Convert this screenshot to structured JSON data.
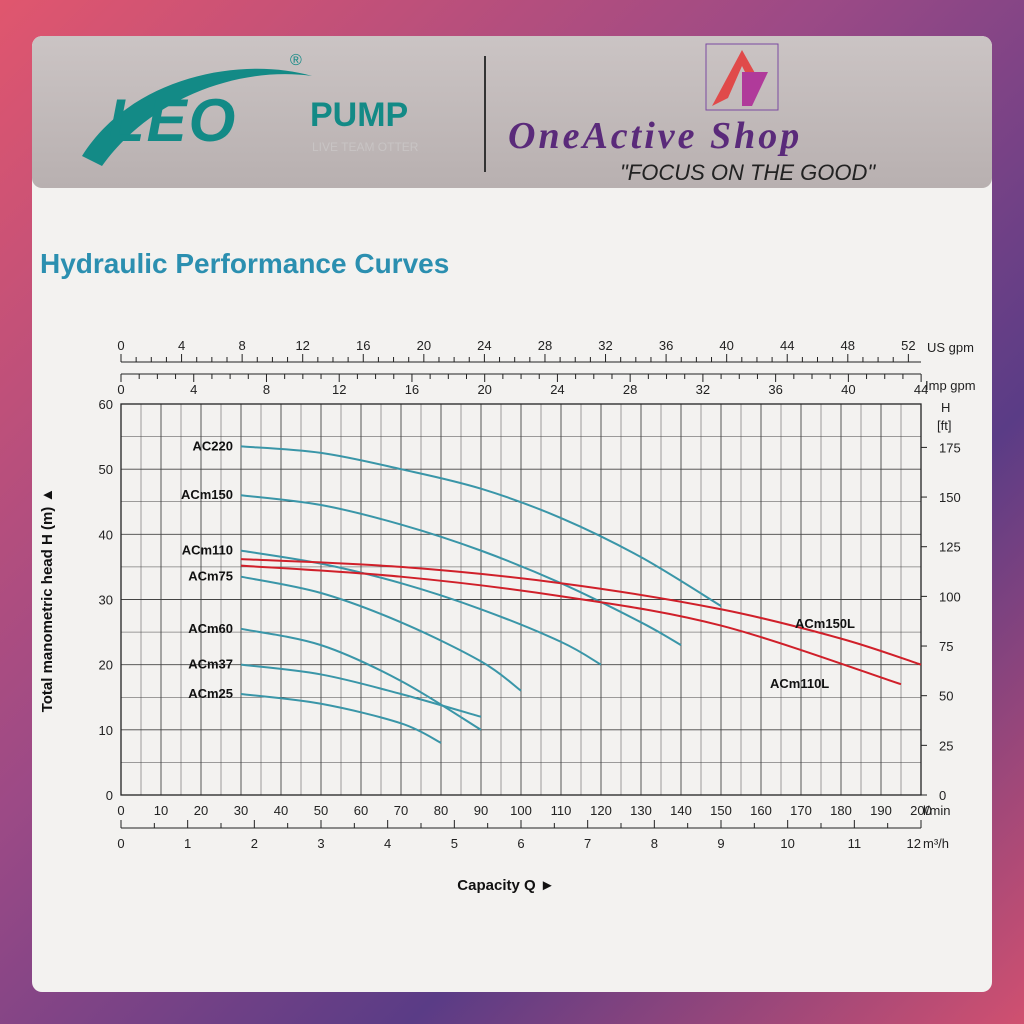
{
  "brand": {
    "leo_logo": "LEO",
    "pump_word": "PUMP",
    "tagline": "LIVE TEAM OTTER",
    "registered_mark": "®",
    "shop_name": "OneActive Shop",
    "shop_tagline": "\"FOCUS ON THE GOOD\""
  },
  "colors": {
    "teal_brand": "#138a86",
    "title_blue": "#2b8fb0",
    "curve_teal": "#3a96a8",
    "curve_red": "#d0202a",
    "grid": "#444444"
  },
  "chart_data": {
    "type": "line",
    "title": "Hydraulic Performance Curves",
    "ylabel": "Total manometric head H (m) ▲",
    "xlabel": "Capacity Q ►",
    "ylim": [
      0,
      60
    ],
    "xlim": [
      0,
      200
    ],
    "x_unit": "l/min",
    "y_ticks": [
      "0",
      "10",
      "20",
      "30",
      "40",
      "50",
      "60"
    ],
    "x_ticks": [
      "0",
      "10",
      "20",
      "30",
      "40",
      "50",
      "60",
      "70",
      "80",
      "90",
      "100",
      "110",
      "120",
      "130",
      "140",
      "150",
      "160",
      "170",
      "180",
      "190",
      "200"
    ],
    "secondary_axes": {
      "us_gpm": {
        "unit": "US gpm",
        "ticks": [
          "0",
          "4",
          "8",
          "12",
          "16",
          "20",
          "24",
          "28",
          "32",
          "36",
          "40",
          "44",
          "48",
          "52"
        ]
      },
      "imp_gpm": {
        "unit": "Imp gpm",
        "ticks": [
          "0",
          "4",
          "8",
          "12",
          "16",
          "20",
          "24",
          "28",
          "32",
          "36",
          "40",
          "44"
        ]
      },
      "m3h": {
        "unit": "m³/h",
        "ticks": [
          "0",
          "1",
          "2",
          "3",
          "4",
          "5",
          "6",
          "7",
          "8",
          "9",
          "10",
          "11",
          "12"
        ]
      },
      "head_ft": {
        "unit": "H",
        "unit2": "[ft]",
        "ticks": [
          "0",
          "25",
          "50",
          "75",
          "100",
          "125",
          "150",
          "175"
        ]
      }
    },
    "grid": true,
    "series": [
      {
        "name": "AC220",
        "color": "teal",
        "label_side": "left",
        "x": [
          30,
          50,
          70,
          90,
          110,
          130,
          150
        ],
        "y": [
          53.5,
          52.5,
          50,
          47,
          42.5,
          36.5,
          29
        ]
      },
      {
        "name": "ACm150",
        "color": "teal",
        "label_side": "left",
        "x": [
          30,
          50,
          70,
          90,
          110,
          130,
          140
        ],
        "y": [
          46,
          44.5,
          41.5,
          37.5,
          32.5,
          26.5,
          23
        ]
      },
      {
        "name": "ACm110",
        "color": "teal",
        "label_side": "left",
        "x": [
          30,
          50,
          70,
          90,
          110,
          120
        ],
        "y": [
          37.5,
          35.5,
          32.5,
          28.5,
          23.5,
          20
        ]
      },
      {
        "name": "ACm75",
        "color": "teal",
        "label_side": "left",
        "x": [
          30,
          50,
          70,
          90,
          100
        ],
        "y": [
          33.5,
          31,
          26.5,
          20.5,
          16
        ]
      },
      {
        "name": "ACm60",
        "color": "teal",
        "label_side": "left",
        "x": [
          30,
          50,
          70,
          90
        ],
        "y": [
          25.5,
          23,
          17.5,
          10
        ]
      },
      {
        "name": "ACm37",
        "color": "teal",
        "label_side": "left",
        "x": [
          30,
          50,
          70,
          90
        ],
        "y": [
          20,
          18.5,
          15.5,
          12
        ]
      },
      {
        "name": "ACm25",
        "color": "teal",
        "label_side": "left",
        "x": [
          30,
          50,
          70,
          80
        ],
        "y": [
          15.5,
          14,
          11,
          8
        ]
      },
      {
        "name": "ACm150L",
        "color": "red",
        "label_side": "right",
        "x": [
          30,
          70,
          110,
          150,
          180,
          203
        ],
        "y": [
          36.2,
          35,
          32.5,
          28.5,
          24,
          20
        ]
      },
      {
        "name": "ACm110L",
        "color": "red",
        "label_side": "right",
        "x": [
          30,
          70,
          110,
          150,
          195
        ],
        "y": [
          35.2,
          33.5,
          30.5,
          26,
          17
        ]
      }
    ]
  }
}
